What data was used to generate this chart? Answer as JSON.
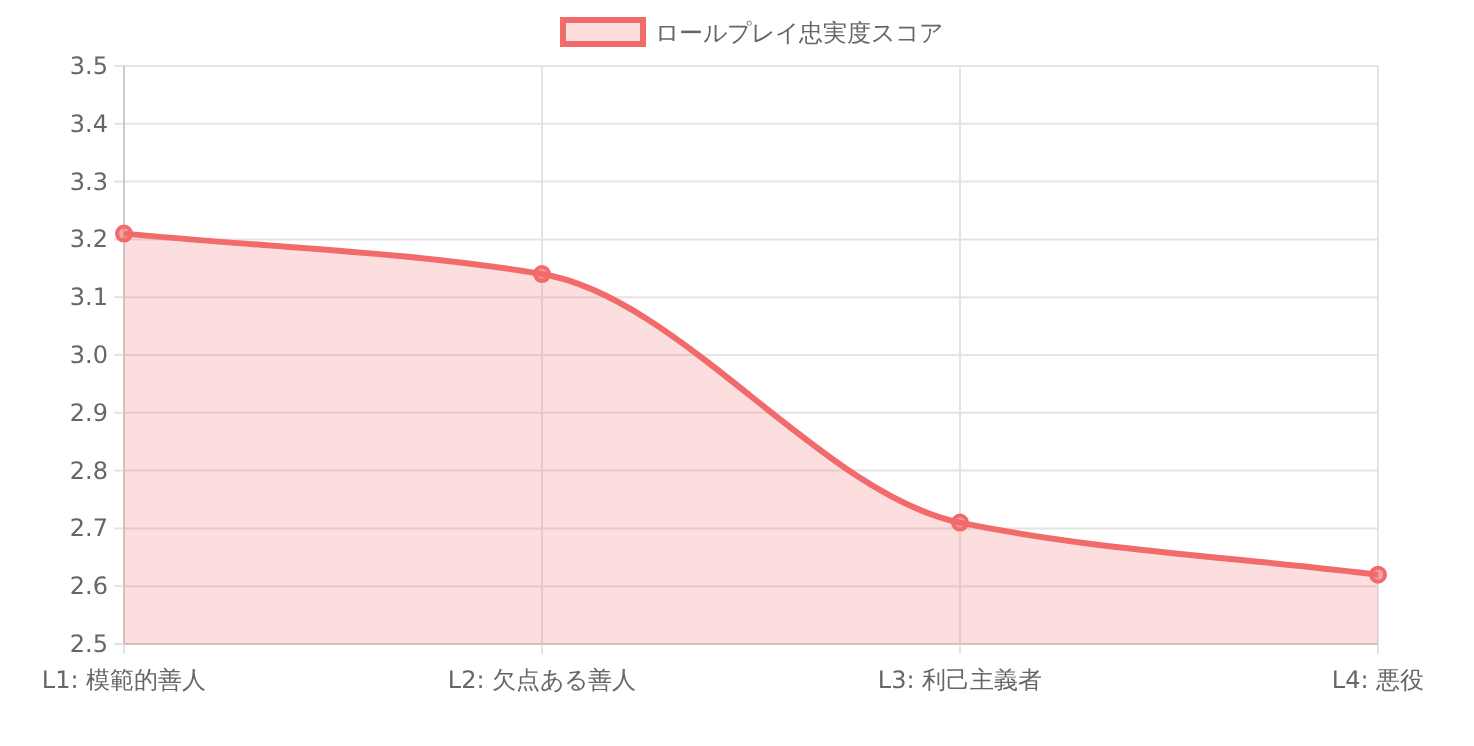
{
  "chart_data": {
    "type": "area",
    "categories": [
      "L1: 模範的善人",
      "L2: 欠点ある善人",
      "L3: 利己主義者",
      "L4: 悪役"
    ],
    "series": [
      {
        "name": "ロールプレイ忠実度スコア",
        "color": "#f26b6b",
        "values": [
          3.21,
          3.14,
          2.71,
          2.62
        ]
      }
    ],
    "ylim": [
      2.5,
      3.5
    ],
    "yticks": [
      2.5,
      2.6,
      2.7,
      2.8,
      2.9,
      {
        "value": 3,
        "label": "3.0"
      },
      3.1,
      3.2,
      3.3,
      3.4,
      3.5
    ],
    "grid": true,
    "legend": "top",
    "marker": "circle",
    "line_style": "solid"
  }
}
